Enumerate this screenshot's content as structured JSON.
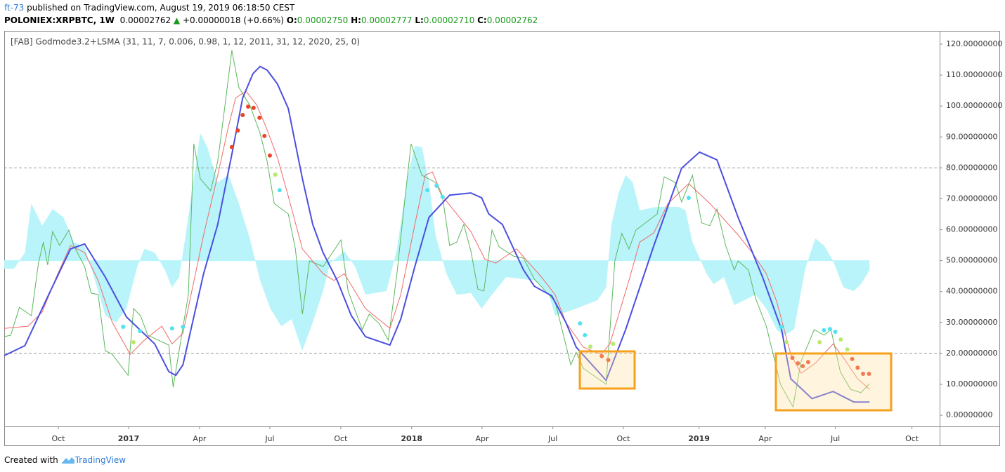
{
  "header": {
    "author": "ft-73",
    "published": " published on TradingView.com, August 19, 2019 06:18:50 CEST",
    "symbol": "POLONIEX:XRPBTC, 1W",
    "price": "0.00002762",
    "change": "+0.00000018 (+0.66%)",
    "o_label": "O:",
    "o": "0.00002750",
    "h_label": "H:",
    "h": "0.00002777",
    "l_label": "L:",
    "l": "0.00002710",
    "c_label": "C:",
    "c": "0.00002762"
  },
  "footer": {
    "created": "Created with",
    "brand": "TradingView"
  },
  "chart_data": {
    "type": "line",
    "title": "[FAB] Godmode3.2+LSMA (31, 11, 7, 0.006, 0.98, 1, 12, 2011, 31, 12, 2020, 25, 0)",
    "xlim": [
      0,
      172.2
    ],
    "ylim": [
      -3.6,
      124.3
    ],
    "xticks": [
      {
        "value": 9.96,
        "label": "Oct"
      },
      {
        "value": 22.9,
        "label": "2017"
      },
      {
        "value": 35.96,
        "label": "Apr"
      },
      {
        "value": 48.9,
        "label": "Jul"
      },
      {
        "value": 61.96,
        "label": "Oct"
      },
      {
        "value": 75.0,
        "label": "2018"
      },
      {
        "value": 87.97,
        "label": "Apr"
      },
      {
        "value": 101.0,
        "label": "Jul"
      },
      {
        "value": 113.98,
        "label": "Oct"
      },
      {
        "value": 127.9,
        "label": "2019"
      },
      {
        "value": 140.1,
        "label": "Apr"
      },
      {
        "value": 153.0,
        "label": "Jul"
      },
      {
        "value": 167.1,
        "label": "Oct"
      }
    ],
    "yticks": [
      {
        "value": 0,
        "label": "0.00000000"
      },
      {
        "value": 10,
        "label": "10.00000000"
      },
      {
        "value": 20,
        "label": "20.00000000"
      },
      {
        "value": 30,
        "label": "30.00000000"
      },
      {
        "value": 40,
        "label": "40.00000000"
      },
      {
        "value": 50,
        "label": "50.00000000"
      },
      {
        "value": 60,
        "label": "60.00000000"
      },
      {
        "value": 70,
        "label": "70.00000000"
      },
      {
        "value": 80,
        "label": "80.00000000"
      },
      {
        "value": 90,
        "label": "90.00000000"
      },
      {
        "value": 100,
        "label": "100.00000000"
      },
      {
        "value": 110,
        "label": "110.00000000"
      },
      {
        "value": 120,
        "label": "120.00000000"
      }
    ],
    "hlines": [
      80,
      20
    ],
    "series": [
      {
        "type": "area",
        "color": "#b8f4f9",
        "baseline": 50,
        "x": [
          0,
          1.8,
          3.8,
          5.0,
          7.0,
          8.9,
          10.9,
          12.8,
          14.8,
          16.7,
          18.6,
          20.6,
          22.5,
          24.5,
          25.8,
          27.7,
          29.6,
          30.9,
          32.2,
          33.5,
          34.8,
          36.1,
          37.4,
          39.3,
          41.3,
          43.2,
          45.2,
          47.1,
          49.0,
          51.0,
          52.9,
          54.9,
          56.8,
          58.7,
          60.0,
          62.6,
          64.6,
          66.5,
          70.4,
          72.3,
          74.3,
          75.6,
          76.9,
          78.2,
          79.4,
          81.4,
          83.3,
          85.9,
          87.9,
          89.8,
          92.4,
          97.6,
          100.2,
          101.4,
          105.3,
          109.2,
          110.8,
          111.8,
          113.1,
          114.4,
          115.7,
          117.0,
          120.2,
          124.1,
          125.4,
          126.7,
          129.3,
          130.6,
          132.5,
          134.4,
          138.3,
          140.3,
          142.2,
          143.5,
          145.4,
          147.4,
          149.3,
          150.9,
          152.6,
          154.5,
          156.4,
          157.7,
          159.3
        ],
        "values": [
          47.4,
          47.4,
          52.6,
          68.5,
          61.3,
          66.7,
          64.0,
          56.0,
          54.5,
          43.6,
          32.2,
          30.0,
          34.5,
          48.1,
          53.8,
          52.6,
          46.9,
          41.3,
          44.7,
          59.4,
          75.3,
          91.2,
          86.7,
          75.3,
          77.6,
          68.5,
          57.2,
          43.6,
          34.5,
          28.8,
          31.1,
          20.9,
          30.0,
          40.2,
          49.2,
          53.1,
          48.1,
          39.0,
          40.2,
          53.8,
          77.6,
          87.1,
          86.7,
          75.3,
          58.3,
          45.8,
          39.0,
          39.5,
          34.5,
          39.0,
          44.7,
          43.6,
          39.5,
          32.2,
          34.5,
          37.2,
          41.3,
          61.7,
          71.9,
          77.6,
          75.3,
          66.3,
          67.4,
          67.4,
          66.3,
          56.0,
          45.8,
          42.4,
          44.7,
          35.6,
          39.0,
          34.5,
          27.7,
          25.9,
          27.7,
          47.0,
          57.2,
          54.9,
          49.9,
          41.3,
          40.2,
          42.4,
          47.0
        ]
      },
      {
        "type": "line",
        "color": "#5cb85c",
        "width": 1,
        "x": [
          0,
          1.2,
          2.8,
          5.0,
          6.3,
          7.2,
          8.0,
          8.9,
          10.2,
          11.9,
          12.8,
          14.8,
          16.0,
          17.3,
          18.6,
          19.9,
          22.8,
          23.8,
          25.1,
          26.4,
          30.3,
          31.1,
          32.2,
          33.9,
          34.9,
          36.1,
          38.0,
          39.3,
          40.4,
          41.9,
          43.2,
          45.2,
          47.1,
          48.4,
          49.7,
          52.3,
          53.6,
          54.9,
          56.2,
          58.7,
          62.0,
          63.3,
          65.9,
          67.2,
          69.1,
          70.7,
          72.3,
          73.6,
          74.9,
          76.9,
          79.4,
          80.7,
          82.0,
          83.3,
          84.6,
          85.9,
          87.2,
          88.3,
          89.8,
          91.1,
          93.7,
          95.6,
          97.6,
          101.4,
          102.7,
          104.3,
          105.3,
          106.6,
          110.8,
          112.4,
          113.7,
          115.0,
          116.3,
          120.2,
          121.5,
          123.5,
          124.7,
          126.7,
          128.4,
          129.9,
          131.2,
          132.8,
          134.4,
          135.1,
          137.0,
          138.3,
          140.3,
          142.9,
          145.2,
          146.7,
          149.1,
          150.9,
          152.2,
          153.9,
          155.8,
          157.7,
          159.3
        ],
        "values": [
          25.4,
          25.9,
          34.9,
          32.2,
          49.2,
          56.0,
          48.6,
          59.4,
          54.9,
          59.9,
          54.9,
          48.1,
          39.5,
          39.0,
          20.9,
          19.7,
          12.9,
          34.5,
          32.2,
          25.9,
          22.7,
          9.1,
          20.9,
          39.0,
          87.8,
          76.5,
          72.6,
          82.1,
          96.9,
          118.0,
          106.0,
          100.3,
          91.2,
          82.1,
          68.5,
          65.1,
          53.8,
          32.7,
          49.9,
          48.1,
          56.7,
          40.2,
          27.7,
          32.7,
          29.5,
          24.3,
          45.8,
          67.4,
          87.8,
          77.6,
          75.3,
          70.3,
          54.9,
          56.0,
          61.7,
          53.1,
          40.8,
          40.2,
          59.9,
          54.5,
          51.5,
          50.8,
          44.0,
          36.8,
          27.7,
          16.3,
          20.4,
          15.2,
          10.0,
          49.9,
          58.8,
          53.8,
          59.9,
          65.1,
          77.1,
          75.3,
          69.0,
          77.6,
          62.2,
          61.3,
          66.7,
          54.9,
          47.0,
          49.9,
          47.0,
          37.9,
          28.8,
          10.0,
          2.7,
          17.5,
          27.7,
          25.9,
          27.7,
          14.1,
          8.4,
          7.3,
          10.2
        ]
      },
      {
        "type": "line",
        "color": "#f06a6a",
        "width": 1,
        "x": [
          0,
          4.4,
          7.0,
          9.6,
          12.2,
          14.8,
          17.3,
          19.9,
          23.2,
          25.8,
          29.0,
          30.9,
          32.9,
          36.7,
          39.3,
          41.3,
          42.6,
          44.5,
          46.5,
          48.4,
          50.3,
          52.3,
          54.9,
          58.7,
          60.7,
          62.6,
          66.5,
          71.0,
          73.0,
          75.6,
          77.5,
          78.8,
          80.7,
          83.3,
          85.9,
          88.5,
          90.5,
          94.3,
          98.9,
          101.4,
          103.4,
          106.6,
          109.9,
          111.5,
          115.0,
          117.0,
          119.6,
          122.2,
          126.0,
          129.9,
          135.1,
          137.7,
          140.3,
          142.2,
          144.8,
          146.7,
          149.3,
          152.6,
          154.5,
          157.1,
          159.3
        ],
        "values": [
          28.1,
          28.8,
          33.4,
          44.7,
          54.9,
          52.6,
          43.6,
          30.0,
          19.7,
          24.3,
          28.8,
          23.1,
          26.5,
          58.3,
          77.6,
          93.5,
          102.6,
          104.8,
          100.3,
          92.3,
          83.3,
          70.8,
          53.8,
          45.8,
          43.6,
          45.8,
          34.5,
          28.1,
          39.0,
          61.7,
          77.6,
          78.7,
          70.8,
          65.1,
          59.4,
          50.4,
          49.2,
          53.8,
          44.7,
          39.0,
          30.0,
          22.0,
          19.7,
          23.1,
          43.6,
          56.0,
          59.0,
          68.5,
          74.9,
          68.5,
          58.3,
          52.6,
          45.8,
          36.8,
          19.7,
          13.6,
          16.8,
          23.1,
          18.6,
          11.8,
          8.4
        ]
      },
      {
        "type": "line",
        "color": "#4b4fe0",
        "width": 2,
        "x": [
          0,
          3.8,
          7.6,
          12.2,
          14.8,
          18.6,
          22.5,
          27.7,
          30.3,
          31.6,
          32.9,
          36.7,
          39.3,
          41.9,
          43.9,
          45.8,
          47.1,
          48.4,
          50.3,
          52.3,
          54.9,
          56.8,
          58.7,
          61.3,
          63.9,
          66.5,
          71.0,
          73.0,
          75.6,
          78.2,
          82.0,
          85.9,
          87.9,
          89.2,
          91.7,
          95.6,
          97.6,
          100.8,
          103.4,
          105.3,
          110.8,
          114.4,
          119.6,
          124.7,
          128.0,
          131.2,
          135.1,
          139.6,
          143.1,
          144.8,
          148.7,
          152.6,
          156.4,
          159.3
        ],
        "values": [
          19.3,
          22.5,
          36.8,
          53.8,
          55.4,
          44.7,
          31.8,
          23.1,
          14.1,
          12.9,
          16.3,
          45.8,
          61.7,
          84.4,
          102.6,
          110.5,
          112.8,
          111.6,
          107.1,
          99.2,
          76.5,
          61.7,
          52.6,
          43.6,
          32.2,
          25.4,
          22.7,
          31.1,
          48.1,
          64.0,
          71.2,
          71.9,
          70.3,
          65.1,
          61.7,
          47.0,
          41.7,
          38.6,
          30.0,
          22.0,
          11.3,
          27.7,
          54.9,
          79.9,
          85.1,
          82.6,
          64.0,
          44.7,
          27.7,
          11.8,
          5.4,
          7.7,
          4.3,
          4.3
        ]
      },
      {
        "type": "scatter",
        "color": "#e8452b",
        "x": [
          41.9,
          43.0,
          43.9,
          44.9,
          45.9,
          47.0,
          47.9,
          48.9,
          110.0,
          111.2,
          145.1,
          146.1,
          147.0,
          148.0,
          156.1,
          157.1,
          158.1,
          159.2
        ],
        "values": [
          86.7,
          92.1,
          97.1,
          99.8,
          99.4,
          96.2,
          90.3,
          84.0,
          19.1,
          17.9,
          18.6,
          16.8,
          15.9,
          17.2,
          18.2,
          15.4,
          13.4,
          13.4
        ]
      },
      {
        "type": "scatter",
        "color": "#4fe3f2",
        "x": [
          21.9,
          25.0,
          30.9,
          32.9,
          50.7,
          77.9,
          79.6,
          80.7,
          106.0,
          106.9,
          126.0,
          143.0,
          150.9,
          152.0,
          153.0
        ],
        "values": [
          28.6,
          27.2,
          28.1,
          28.6,
          72.8,
          72.8,
          74.2,
          70.6,
          29.7,
          25.9,
          70.3,
          28.6,
          27.5,
          27.9,
          27.0
        ]
      },
      {
        "type": "scatter",
        "color": "#b9e86a",
        "x": [
          23.8,
          49.9,
          107.9,
          112.1,
          144.0,
          150.1,
          154.0,
          155.2
        ],
        "values": [
          23.6,
          77.8,
          22.2,
          23.1,
          23.6,
          23.6,
          24.5,
          21.3
        ]
      }
    ]
  }
}
